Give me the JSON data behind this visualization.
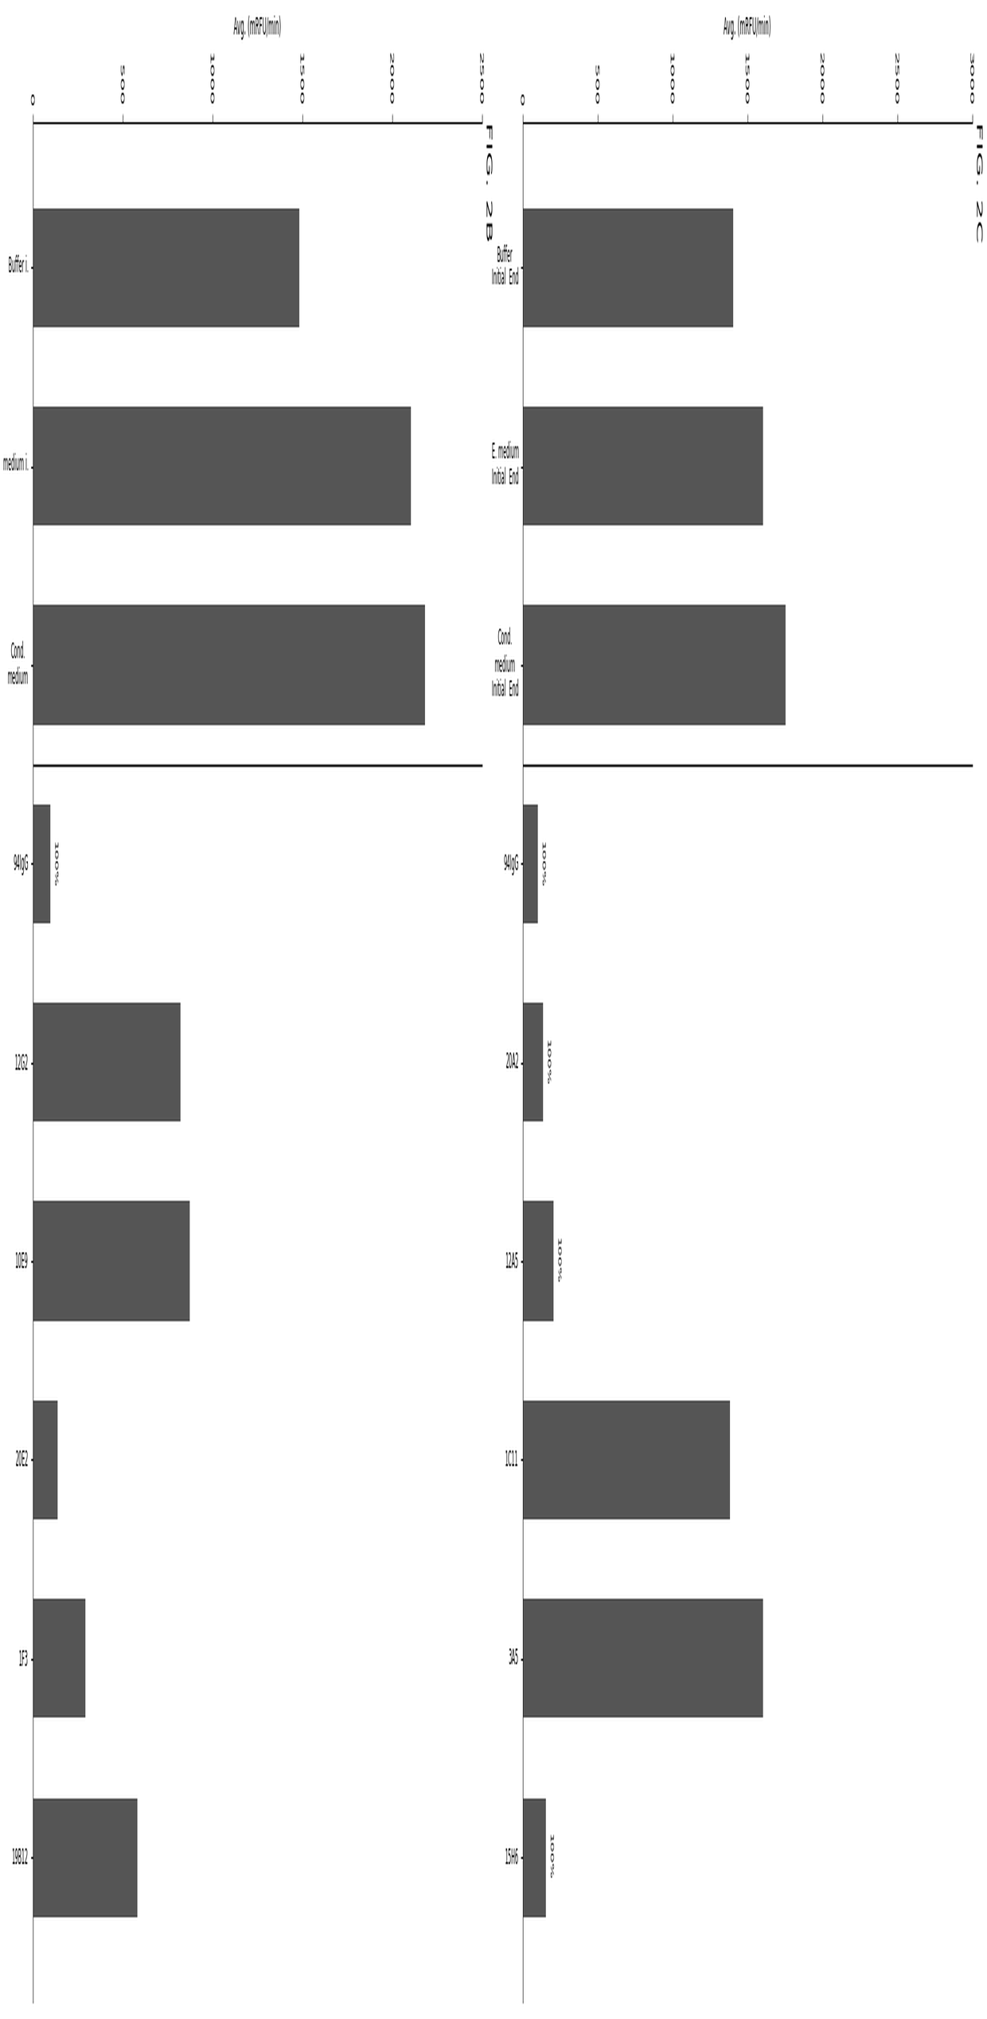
{
  "fig2b": {
    "title": "FIG. 2B",
    "ylabel": "Avg. (mRFU/min)",
    "categories": [
      "Buffer i.",
      "medium i.",
      "Cond.\nmedium",
      "94IgG",
      "12G2",
      "10E9",
      "20E2",
      "1F3",
      "19B12"
    ],
    "values": [
      1480,
      2100,
      2180,
      95,
      820,
      870,
      135,
      290,
      580
    ],
    "bar_color": "#555555",
    "ylim": [
      0,
      2500
    ],
    "yticks": [
      0,
      500,
      1000,
      1500,
      2000,
      2500
    ],
    "separator_after_idx": 3,
    "annotations": [
      {
        "bar_idx": 3,
        "text": "100%"
      }
    ]
  },
  "fig2c": {
    "title": "FIG. 2C",
    "ylabel": "Avg. (mRFU/min)",
    "categories": [
      "Buffer\nInitial  End",
      "E. medium\nInitial  End",
      "Cond.\nmedium\nInitial  End",
      "94IgG",
      "20A2",
      "12A5",
      "1C11",
      "3A5",
      "15H6"
    ],
    "values": [
      1400,
      1600,
      1750,
      95,
      130,
      200,
      1380,
      1600,
      150
    ],
    "bar_color": "#555555",
    "ylim": [
      0,
      3000
    ],
    "yticks": [
      0,
      500,
      1000,
      1500,
      2000,
      2500,
      3000
    ],
    "separator_after_idx": 3,
    "annotations": [
      {
        "bar_idx": 3,
        "text": "100%"
      },
      {
        "bar_idx": 4,
        "text": "100%"
      },
      {
        "bar_idx": 5,
        "text": "100%"
      },
      {
        "bar_idx": 8,
        "text": "100%"
      }
    ]
  }
}
